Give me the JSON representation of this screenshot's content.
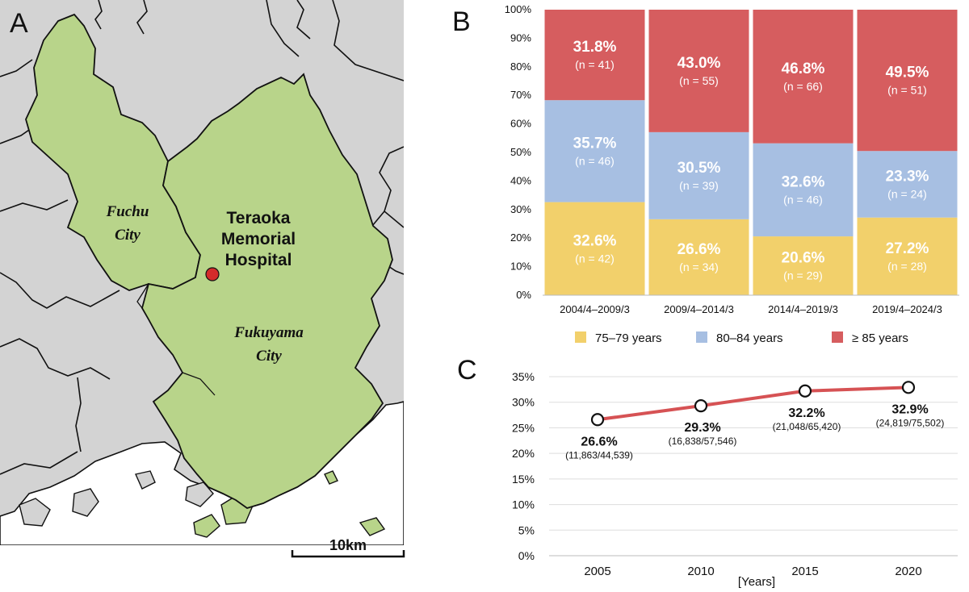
{
  "panels": {
    "a": {
      "letter": "A",
      "hospital_lines": [
        "Teraoka",
        "Memorial",
        "Hospital"
      ],
      "fuchu_lines": [
        "Fuchu",
        "City"
      ],
      "fukuyama_lines": [
        "Fukuyama",
        "City"
      ],
      "scale_label": "10km",
      "colors": {
        "region": "#b8d48a",
        "land": "#d3d3d3",
        "sea": "#ffffff",
        "marker": "#d42b2b"
      }
    },
    "b": {
      "letter": "B"
    },
    "c": {
      "letter": "C"
    }
  },
  "chart_data": [
    {
      "type": "bar",
      "stacked": true,
      "percent_stacked": true,
      "categories": [
        "2004/4–2009/3",
        "2009/4–2014/3",
        "2014/4–2019/3",
        "2019/4–2024/3"
      ],
      "series": [
        {
          "name": "75–79 years",
          "color": "#f2d06b",
          "values": [
            32.6,
            26.6,
            20.6,
            27.2
          ],
          "labels": [
            "32.6%",
            "26.6%",
            "20.6%",
            "27.2%"
          ],
          "counts": [
            "(n = 42)",
            "(n = 34)",
            "(n = 29)",
            "(n = 28)"
          ]
        },
        {
          "name": "80–84 years",
          "color": "#a7bfe2",
          "values": [
            35.7,
            30.5,
            32.6,
            23.3
          ],
          "labels": [
            "35.7%",
            "30.5%",
            "32.6%",
            "23.3%"
          ],
          "counts": [
            "(n = 46)",
            "(n = 39)",
            "(n = 46)",
            "(n = 24)"
          ]
        },
        {
          "name": "≥ 85 years",
          "color": "#d65d5f",
          "values": [
            31.8,
            43.0,
            46.8,
            49.5
          ],
          "labels": [
            "31.8%",
            "43.0%",
            "46.8%",
            "49.5%"
          ],
          "counts": [
            "(n = 41)",
            "(n = 55)",
            "(n = 66)",
            "(n = 51)"
          ]
        }
      ],
      "yticks": [
        "0%",
        "10%",
        "20%",
        "30%",
        "40%",
        "50%",
        "60%",
        "70%",
        "80%",
        "90%",
        "100%"
      ],
      "ylim": [
        0,
        100
      ],
      "legend": "bottom"
    },
    {
      "type": "line",
      "x": [
        2005,
        2010,
        2015,
        2020
      ],
      "xtick_labels": [
        "2005",
        "2010",
        "2015",
        "2020"
      ],
      "values": [
        26.6,
        29.3,
        32.2,
        32.9
      ],
      "labels": [
        "26.6%",
        "29.3%",
        "32.2%",
        "32.9%"
      ],
      "sublabels": [
        "(11,863/44,539)",
        "(16,838/57,546)",
        "(21,048/65,420)",
        "(24,819/75,502)"
      ],
      "yticks": [
        "0%",
        "5%",
        "10%",
        "15%",
        "20%",
        "25%",
        "30%",
        "35%"
      ],
      "ylim": [
        0,
        35
      ],
      "xlabel": "[Years]",
      "line_color": "#d65254",
      "grid": true
    }
  ]
}
